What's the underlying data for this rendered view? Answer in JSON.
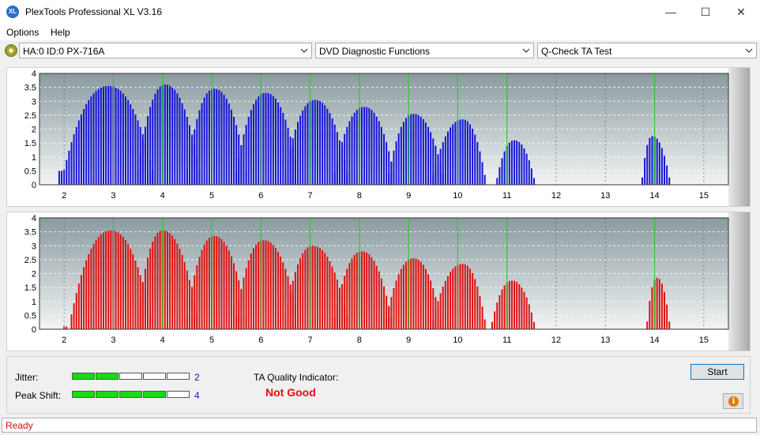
{
  "window": {
    "title": "PlexTools Professional XL V3.16",
    "icon_text": "XL",
    "minimize_glyph": "—",
    "maximize_glyph": "☐",
    "close_glyph": "✕"
  },
  "menu": {
    "items": [
      "Options",
      "Help"
    ]
  },
  "toolbar": {
    "drive": "HA:0 ID:0  PX-716A",
    "function": "DVD Diagnostic Functions",
    "test": "Q-Check TA Test"
  },
  "colors": {
    "top_bars": "#1414d8",
    "bottom_bars": "#e01010",
    "peak_lines": "#20d020",
    "good_meter": "#19d919"
  },
  "chart_data": [
    {
      "type": "bar",
      "name": "land",
      "x_ticks": [
        "2",
        "3",
        "4",
        "5",
        "6",
        "7",
        "8",
        "9",
        "10",
        "11",
        "12",
        "13",
        "14",
        "15"
      ],
      "y_ticks": [
        "0",
        "0.5",
        "1",
        "1.5",
        "2",
        "2.5",
        "3",
        "3.5",
        "4"
      ],
      "xlim": [
        1.5,
        15.5
      ],
      "ylim": [
        0,
        4
      ],
      "peak_lines": [
        3,
        4,
        5,
        6,
        7,
        8,
        9,
        10,
        11,
        14
      ],
      "groups": [
        {
          "from": 1.9,
          "to": 1.95,
          "peak": 0.5
        },
        {
          "from": 2.0,
          "to": 3.8,
          "center": 2.9,
          "peak": 3.55
        },
        {
          "from": 3.5,
          "to": 4.75,
          "center": 4.05,
          "peak": 3.6
        },
        {
          "from": 4.5,
          "to": 5.7,
          "center": 5.05,
          "peak": 3.45
        },
        {
          "from": 5.5,
          "to": 6.75,
          "center": 6.1,
          "peak": 3.3
        },
        {
          "from": 6.5,
          "to": 7.75,
          "center": 7.1,
          "peak": 3.05
        },
        {
          "from": 7.5,
          "to": 8.7,
          "center": 8.1,
          "peak": 2.8
        },
        {
          "from": 8.6,
          "to": 9.7,
          "center": 9.1,
          "peak": 2.55
        },
        {
          "from": 9.5,
          "to": 10.55,
          "center": 10.1,
          "peak": 2.35
        },
        {
          "from": 10.8,
          "to": 11.55,
          "center": 11.15,
          "peak": 1.6
        },
        {
          "from": 13.75,
          "to": 14.3,
          "center": 13.95,
          "peak": 1.75
        }
      ]
    },
    {
      "type": "bar",
      "name": "groove",
      "x_ticks": [
        "2",
        "3",
        "4",
        "5",
        "6",
        "7",
        "8",
        "9",
        "10",
        "11",
        "12",
        "13",
        "14",
        "15"
      ],
      "y_ticks": [
        "0",
        "0.5",
        "1",
        "1.5",
        "2",
        "2.5",
        "3",
        "3.5",
        "4"
      ],
      "xlim": [
        1.5,
        15.5
      ],
      "ylim": [
        0,
        4
      ],
      "peak_lines": [
        3,
        4,
        5,
        6,
        7,
        8,
        9,
        10,
        11,
        14
      ],
      "groups": [
        {
          "from": 2.0,
          "to": 2.05,
          "peak": 0.1
        },
        {
          "from": 2.15,
          "to": 3.75,
          "center": 2.95,
          "peak": 3.55
        },
        {
          "from": 3.5,
          "to": 4.7,
          "center": 4.0,
          "peak": 3.55
        },
        {
          "from": 4.5,
          "to": 5.7,
          "center": 5.05,
          "peak": 3.35
        },
        {
          "from": 5.5,
          "to": 6.75,
          "center": 6.05,
          "peak": 3.2
        },
        {
          "from": 6.5,
          "to": 7.75,
          "center": 7.05,
          "peak": 3.0
        },
        {
          "from": 7.5,
          "to": 8.65,
          "center": 8.05,
          "peak": 2.8
        },
        {
          "from": 8.55,
          "to": 9.65,
          "center": 9.1,
          "peak": 2.55
        },
        {
          "from": 9.5,
          "to": 10.55,
          "center": 10.1,
          "peak": 2.35
        },
        {
          "from": 10.7,
          "to": 11.55,
          "center": 11.1,
          "peak": 1.75
        },
        {
          "from": 13.85,
          "to": 14.3,
          "center": 14.05,
          "peak": 1.85
        }
      ]
    }
  ],
  "metrics": {
    "jitter_label": "Jitter:",
    "jitter_value": "2",
    "jitter_level": 2,
    "peak_shift_label": "Peak Shift:",
    "peak_shift_value": "4",
    "peak_shift_level": 4,
    "meter_max": 5
  },
  "quality": {
    "label": "TA Quality Indicator:",
    "value": "Not Good"
  },
  "buttons": {
    "start": "Start",
    "info_glyph": "i"
  },
  "status": {
    "text": "Ready"
  }
}
